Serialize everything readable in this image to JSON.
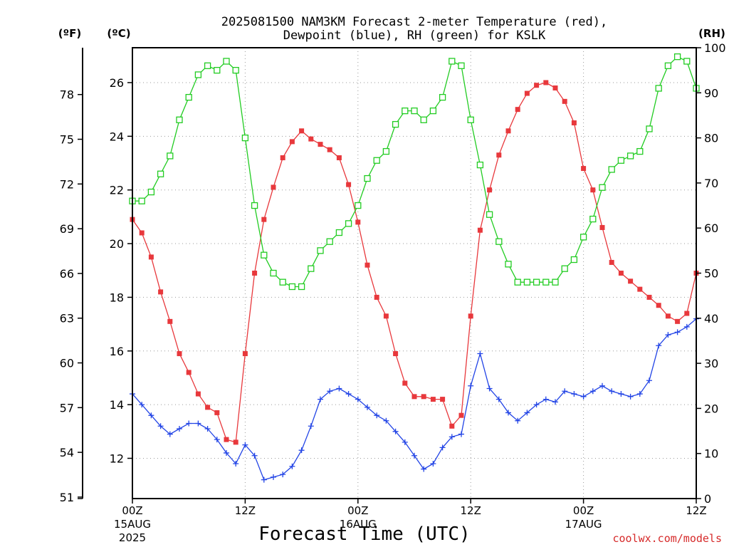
{
  "chart_data": {
    "type": "line",
    "title_line1": "2025081500 NAM3KM Forecast 2-meter Temperature (red),",
    "title_line2": "Dewpoint (blue), RH (green) for KSLK",
    "xlabel": "Forecast Time (UTC)",
    "credit": "coolwx.com/models",
    "units": {
      "fahrenheit": "(ºF)",
      "celsius": "(ºC)",
      "rh": "(RH)"
    },
    "x_range_hours": [
      0,
      60
    ],
    "celsius_range": [
      10.5,
      27.3
    ],
    "fahrenheit_range": [
      50.9,
      81.14
    ],
    "rh_range": [
      0,
      100
    ],
    "grid": true,
    "x_ticks": [
      {
        "hour": 0,
        "label": "00Z",
        "sub1": "15AUG",
        "sub2": "2025"
      },
      {
        "hour": 12,
        "label": "12Z",
        "sub1": "",
        "sub2": ""
      },
      {
        "hour": 24,
        "label": "00Z",
        "sub1": "16AUG",
        "sub2": ""
      },
      {
        "hour": 36,
        "label": "12Z",
        "sub1": "",
        "sub2": ""
      },
      {
        "hour": 48,
        "label": "00Z",
        "sub1": "17AUG",
        "sub2": ""
      },
      {
        "hour": 60,
        "label": "12Z",
        "sub1": "",
        "sub2": ""
      }
    ],
    "celsius_ticks": [
      "12",
      "14",
      "16",
      "18",
      "20",
      "22",
      "24",
      "26"
    ],
    "fahrenheit_ticks": [
      "51",
      "54",
      "57",
      "60",
      "63",
      "66",
      "69",
      "72",
      "75",
      "78"
    ],
    "rh_ticks": [
      "0",
      "10",
      "20",
      "30",
      "40",
      "50",
      "60",
      "70",
      "80",
      "90",
      "100"
    ],
    "series": [
      {
        "name": "2-meter Temperature",
        "color": "#e8383c",
        "marker": "filled-square",
        "unit": "C",
        "values": [
          20.9,
          20.4,
          19.5,
          18.2,
          17.1,
          15.9,
          15.2,
          14.4,
          13.9,
          13.7,
          12.7,
          12.6,
          15.9,
          18.9,
          20.9,
          22.1,
          23.2,
          23.8,
          24.2,
          23.9,
          23.7,
          23.5,
          23.2,
          22.2,
          20.8,
          19.2,
          18.0,
          17.3,
          15.9,
          14.8,
          14.3,
          14.3,
          14.2,
          14.2,
          13.2,
          13.6,
          17.3,
          20.5,
          22.0,
          23.3,
          24.2,
          25.0,
          25.6,
          25.9,
          26.0,
          25.8,
          25.3,
          24.5,
          22.8,
          22.0,
          20.6,
          19.3,
          18.9,
          18.6,
          18.3,
          18.0,
          17.7,
          17.3,
          17.1,
          17.4,
          18.9
        ]
      },
      {
        "name": "Dewpoint",
        "color": "#2244e6",
        "marker": "plus",
        "unit": "C",
        "values": [
          14.4,
          14.0,
          13.6,
          13.2,
          12.9,
          13.1,
          13.3,
          13.3,
          13.1,
          12.7,
          12.2,
          11.8,
          12.5,
          12.1,
          11.2,
          11.3,
          11.4,
          11.7,
          12.3,
          13.2,
          14.2,
          14.5,
          14.6,
          14.4,
          14.2,
          13.9,
          13.6,
          13.4,
          13.0,
          12.6,
          12.1,
          11.6,
          11.8,
          12.4,
          12.8,
          12.9,
          14.7,
          15.9,
          14.6,
          14.2,
          13.7,
          13.4,
          13.7,
          14.0,
          14.2,
          14.1,
          14.5,
          14.4,
          14.3,
          14.5,
          14.7,
          14.5,
          14.4,
          14.3,
          14.4,
          14.9,
          16.2,
          16.6,
          16.7,
          16.9,
          17.2
        ]
      },
      {
        "name": "RH",
        "color": "#22cc22",
        "marker": "open-square",
        "unit": "%",
        "values": [
          66,
          66,
          68,
          72,
          76,
          84,
          89,
          94,
          96,
          95,
          97,
          95,
          80,
          65,
          54,
          50,
          48,
          47,
          47,
          51,
          55,
          57,
          59,
          61,
          65,
          71,
          75,
          77,
          83,
          86,
          86,
          84,
          86,
          89,
          97,
          96,
          84,
          74,
          63,
          57,
          52,
          48,
          48,
          48,
          48,
          48,
          51,
          53,
          58,
          62,
          69,
          73,
          75,
          76,
          77,
          82,
          91,
          96,
          98,
          97,
          91
        ]
      }
    ]
  }
}
